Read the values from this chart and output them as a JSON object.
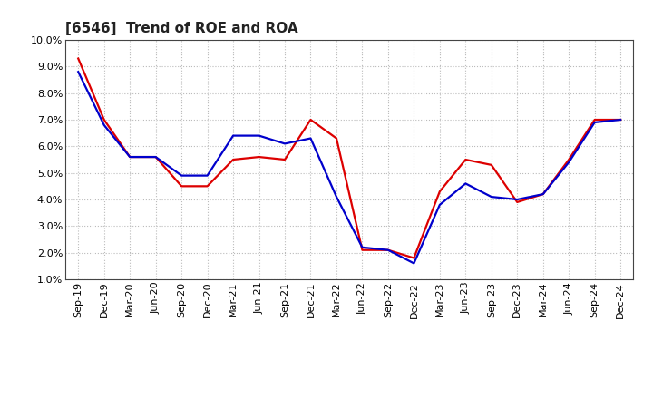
{
  "title": "[6546]  Trend of ROE and ROA",
  "labels": [
    "Sep-19",
    "Dec-19",
    "Mar-20",
    "Jun-20",
    "Sep-20",
    "Dec-20",
    "Mar-21",
    "Jun-21",
    "Sep-21",
    "Dec-21",
    "Mar-22",
    "Jun-22",
    "Sep-22",
    "Dec-22",
    "Mar-23",
    "Jun-23",
    "Sep-23",
    "Dec-23",
    "Mar-24",
    "Jun-24",
    "Sep-24",
    "Dec-24"
  ],
  "ROE": [
    9.3,
    7.0,
    5.6,
    5.6,
    4.5,
    4.5,
    5.5,
    5.6,
    5.5,
    7.0,
    6.3,
    2.1,
    2.1,
    1.8,
    4.3,
    5.5,
    5.3,
    3.9,
    4.2,
    5.5,
    7.0,
    7.0
  ],
  "ROA": [
    8.8,
    6.8,
    5.6,
    5.6,
    4.9,
    4.9,
    6.4,
    6.4,
    6.1,
    6.3,
    4.1,
    2.2,
    2.1,
    1.6,
    3.8,
    4.6,
    4.1,
    4.0,
    4.2,
    5.4,
    6.9,
    7.0
  ],
  "roe_color": "#dd0000",
  "roa_color": "#0000cc",
  "ylim": [
    1.0,
    10.0
  ],
  "yticks": [
    1.0,
    2.0,
    3.0,
    4.0,
    5.0,
    6.0,
    7.0,
    8.0,
    9.0,
    10.0
  ],
  "bg_color": "#ffffff",
  "plot_bg_color": "#ffffff",
  "grid_color": "#bbbbbb",
  "line_width": 1.6,
  "title_fontsize": 11,
  "tick_fontsize": 8,
  "legend_fontsize": 9
}
